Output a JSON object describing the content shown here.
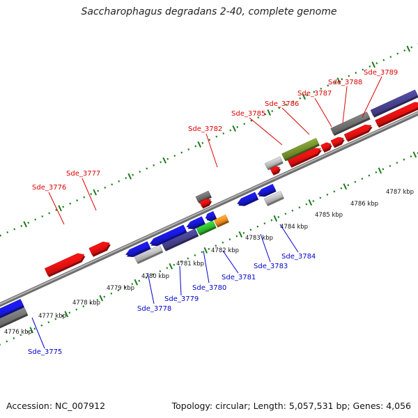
{
  "title": "Saccharophagus degradans 2-40, complete genome",
  "footer": {
    "accession": "Accession: NC_007912",
    "summary": "Topology: circular; Length: 5,057,531 bp; Genes: 4,056"
  },
  "colors": {
    "forward_gene": "#ee1111",
    "reverse_gene": "#1a1aee",
    "label_forward": "#dd0000",
    "label_reverse": "#0000cc",
    "backbone": "#8a8a8a",
    "tick_green": "#1a7a1a",
    "gray_gene": "#777777",
    "light_gray_gene": "#c8c8c8",
    "purple_gene": "#4b4596",
    "olive_gene": "#7a9a30",
    "green_gene": "#33cc33",
    "orange_gene": "#ff9922"
  },
  "ticks": [
    {
      "label": "4776 kbp"
    },
    {
      "label": "4777 kbp"
    },
    {
      "label": "4778 kbp"
    },
    {
      "label": "4779 kbp"
    },
    {
      "label": "4780 kbp"
    },
    {
      "label": "4781 kbp"
    },
    {
      "label": "4782 kbp"
    },
    {
      "label": "4783 kbp"
    },
    {
      "label": "4784 kbp"
    },
    {
      "label": "4785 kbp"
    },
    {
      "label": "4786 kbp"
    },
    {
      "label": "4787 kbp"
    }
  ],
  "forward_labels": [
    {
      "name": "Sde_3776"
    },
    {
      "name": "Sde_3777"
    },
    {
      "name": "Sde_3782"
    },
    {
      "name": "Sde_3785"
    },
    {
      "name": "Sde_3786"
    },
    {
      "name": "Sde_3787"
    },
    {
      "name": "Sde_3788"
    },
    {
      "name": "Sde_3789"
    }
  ],
  "reverse_labels": [
    {
      "name": "Sde_3775"
    },
    {
      "name": "Sde_3778"
    },
    {
      "name": "Sde_3779"
    },
    {
      "name": "Sde_3780"
    },
    {
      "name": "Sde_3781"
    },
    {
      "name": "Sde_3783"
    },
    {
      "name": "Sde_3784"
    }
  ]
}
